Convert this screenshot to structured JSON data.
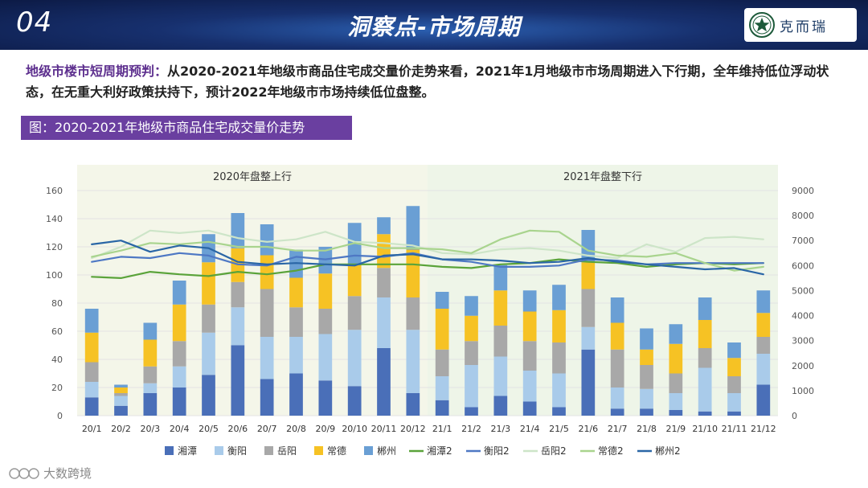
{
  "header": {
    "slide_number": "04",
    "title": "洞察点-市场周期",
    "logo_text": "克而瑞"
  },
  "headline": {
    "lead": "地级市楼市短周期预判：",
    "body": "从2020-2021年地级市商品住宅成交量价走势来看，2021年1月地级市市场周期进入下行期，全年维持低位浮动状态，在无重大利好政策扶持下，预计2022年地级市市场持续低位盘整。"
  },
  "figure_label": "图：2020-2021年地级市商品住宅成交量价走势",
  "watermark": "大数跨境",
  "colors": {
    "banner": "#17306e",
    "purple": "#6a3fa0",
    "xiangtan": "#4a6fb8",
    "hengyang": "#a9cbea",
    "yueyang": "#a8a8a8",
    "changde": "#f6c224",
    "chenzhou": "#6a9fd4",
    "xiangtan2": "#5aa33a",
    "hengyang2": "#4e78c4",
    "yueyang2": "#cde5c8",
    "changde2": "#a9d48e",
    "chenzhou2": "#2a66a6",
    "band2020": "#f4f6e9",
    "band2021": "#eef5e8"
  },
  "chart_data": {
    "type": "bar",
    "stacked": true,
    "bands": [
      {
        "label": "2020年盘整上行",
        "from": "20/1",
        "to": "20/12"
      },
      {
        "label": "2021年盘整下行",
        "from": "21/1",
        "to": "21/12"
      }
    ],
    "categories": [
      "20/1",
      "20/2",
      "20/3",
      "20/4",
      "20/5",
      "20/6",
      "20/7",
      "20/8",
      "20/9",
      "20/10",
      "20/11",
      "20/12",
      "21/1",
      "21/2",
      "21/3",
      "21/4",
      "21/5",
      "21/6",
      "21/7",
      "21/8",
      "21/9",
      "21/10",
      "21/11",
      "21/12"
    ],
    "ylim_left": [
      0,
      160
    ],
    "yticks_left": [
      0,
      20,
      40,
      60,
      80,
      100,
      120,
      140,
      160
    ],
    "ylim_right": [
      0,
      9000
    ],
    "yticks_right": [
      0,
      1000,
      2000,
      3000,
      4000,
      5000,
      6000,
      7000,
      8000,
      9000
    ],
    "series": [
      {
        "name": "湘潭",
        "axis": "left",
        "kind": "bar",
        "color": "#4a6fb8",
        "values": [
          13,
          7,
          16,
          20,
          29,
          50,
          26,
          30,
          25,
          21,
          48,
          16,
          11,
          6,
          14,
          10,
          6,
          47,
          5,
          5,
          4,
          3,
          3,
          22
        ]
      },
      {
        "name": "衡阳",
        "axis": "left",
        "kind": "bar",
        "color": "#a9cbea",
        "values": [
          11,
          7,
          7,
          15,
          30,
          27,
          30,
          26,
          33,
          40,
          36,
          45,
          17,
          30,
          28,
          22,
          24,
          16,
          15,
          14,
          12,
          31,
          13,
          22
        ]
      },
      {
        "name": "岳阳",
        "axis": "left",
        "kind": "bar",
        "color": "#a8a8a8",
        "values": [
          14,
          2,
          12,
          18,
          20,
          18,
          34,
          21,
          18,
          24,
          21,
          23,
          19,
          17,
          22,
          21,
          22,
          27,
          27,
          17,
          14,
          14,
          12,
          12
        ]
      },
      {
        "name": "常德",
        "axis": "left",
        "kind": "bar",
        "color": "#f6c224",
        "values": [
          21,
          4,
          19,
          26,
          30,
          24,
          24,
          21,
          25,
          22,
          24,
          34,
          29,
          18,
          25,
          21,
          23,
          19,
          19,
          11,
          21,
          20,
          13,
          17
        ]
      },
      {
        "name": "郴州",
        "axis": "left",
        "kind": "bar",
        "color": "#6a9fd4",
        "values": [
          17,
          2,
          12,
          17,
          20,
          25,
          22,
          20,
          19,
          30,
          12,
          31,
          12,
          14,
          18,
          15,
          18,
          23,
          18,
          15,
          14,
          16,
          11,
          16
        ]
      },
      {
        "name": "湘潭2",
        "axis": "right",
        "kind": "line",
        "color": "#5aa33a",
        "values": [
          5550,
          5500,
          5750,
          5650,
          5580,
          5750,
          5650,
          5800,
          6050,
          6050,
          6050,
          6050,
          5950,
          5900,
          6050,
          6100,
          6250,
          6150,
          6100,
          5950,
          6050,
          6100,
          6050,
          6100
        ]
      },
      {
        "name": "衡阳2",
        "axis": "right",
        "kind": "line",
        "color": "#4e78c4",
        "values": [
          6150,
          6350,
          6300,
          6500,
          6400,
          6050,
          6000,
          6350,
          6250,
          6400,
          6350,
          6500,
          6250,
          6150,
          5950,
          5950,
          6000,
          6250,
          6200,
          6050,
          6100,
          6100,
          6100,
          6100
        ]
      },
      {
        "name": "岳阳2",
        "axis": "right",
        "kind": "line",
        "color": "#cde5c8",
        "values": [
          6300,
          6750,
          7400,
          7300,
          7400,
          7100,
          6950,
          7050,
          7350,
          6950,
          6900,
          6800,
          6500,
          6450,
          6650,
          6700,
          6600,
          6400,
          6300,
          6850,
          6550,
          7100,
          7150,
          7050
        ]
      },
      {
        "name": "常德2",
        "axis": "right",
        "kind": "line",
        "color": "#a9d48e",
        "values": [
          6350,
          6600,
          6900,
          6850,
          6950,
          6750,
          6750,
          6600,
          6600,
          6900,
          6700,
          6700,
          6650,
          6500,
          7050,
          7400,
          7350,
          6600,
          6400,
          6350,
          6500,
          6100,
          5800,
          5950
        ]
      },
      {
        "name": "郴州2",
        "axis": "right",
        "kind": "line",
        "color": "#2a66a6",
        "values": [
          6850,
          7000,
          6550,
          6800,
          6700,
          6150,
          6050,
          6100,
          6050,
          6000,
          6400,
          6450,
          6250,
          6250,
          6200,
          6100,
          6150,
          6300,
          6150,
          6050,
          5950,
          5850,
          5900,
          5650
        ]
      }
    ]
  }
}
